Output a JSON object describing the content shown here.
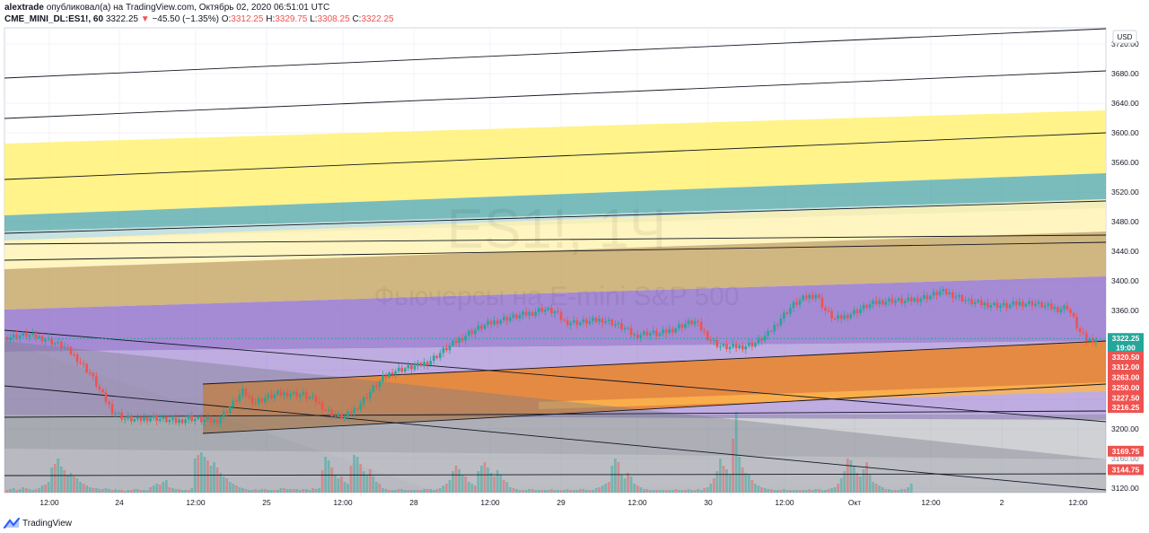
{
  "header": {
    "author": "alextrade",
    "published_text": "опубликовал(а) на TradingView.com, Октябрь 02, 2020 06:51:01 UTC",
    "symbol": "CME_MINI_DL:ES1!, 60",
    "last": "3322.25",
    "change_arrow": "▼",
    "change": "−45.50 (−1.35%)",
    "o_label": "O:",
    "o": "3312.25",
    "h_label": "H:",
    "h": "3329.75",
    "l_label": "L:",
    "l": "3308.25",
    "c_label": "C:",
    "c": "3322.25"
  },
  "footer": {
    "brand": "TradingView",
    "logo_icon": "tradingview-logo-icon"
  },
  "colors": {
    "up": "#26a69a",
    "down": "#ef5350",
    "purple_band": "#9575cd",
    "orange_band": "#f57c00",
    "yellow_band": "#fff176",
    "teal_band": "#4da6a6",
    "tan_band": "#c8a96a",
    "grey_channel": "#787b86"
  },
  "chart_data": {
    "type": "candlestick",
    "currency": "USD",
    "watermark_symbol": "ES1!, 1Ч",
    "watermark_name": "Фьючерсы на E-mini S&P 500",
    "y_ticks": [
      3120,
      3160,
      3200,
      3240,
      3280,
      3320,
      3360,
      3400,
      3440,
      3480,
      3520,
      3560,
      3600,
      3640,
      3680,
      3720
    ],
    "y_tick_labels": [
      "3120.00",
      "3160.00",
      "3200.00",
      "3240.00",
      "3280.00",
      "3320.00",
      "3360.00",
      "3400.00",
      "3440.00",
      "3480.00",
      "3520.00",
      "3560.00",
      "3600.00",
      "3640.00",
      "3680.00",
      "3720.00"
    ],
    "ylim": [
      3114,
      3742
    ],
    "x_labels": [
      "12:00",
      "24",
      "12:00",
      "25",
      "12:00",
      "28",
      "12:00",
      "29",
      "12:00",
      "30",
      "12:00",
      "Окт",
      "12:00",
      "2",
      "12:00"
    ],
    "price_tags": [
      {
        "label": "3322.25",
        "value": 3322.25,
        "color": "#26a69a"
      },
      {
        "label": "19:00",
        "value": 3310,
        "color": "#26a69a"
      },
      {
        "label": "3320.50",
        "value": 3297,
        "color": "#ef5350"
      },
      {
        "label": "3312.00",
        "value": 3284,
        "color": "#ef5350"
      },
      {
        "label": "3263.00",
        "value": 3270,
        "color": "#ef5350"
      },
      {
        "label": "3250.00",
        "value": 3256,
        "color": "#ef5350"
      },
      {
        "label": "3227.50",
        "value": 3242,
        "color": "#ef5350"
      },
      {
        "label": "3216.25",
        "value": 3229,
        "color": "#ef5350"
      },
      {
        "label": "3169.75",
        "value": 3170,
        "color": "#ef5350"
      },
      {
        "label": "3144.75",
        "value": 3145,
        "color": "#ef5350"
      }
    ],
    "faint_label": {
      "label": "3160.00",
      "value": 3160
    },
    "close_path": [
      [
        0,
        3324
      ],
      [
        6,
        3327
      ],
      [
        12,
        3322
      ],
      [
        18,
        3310
      ],
      [
        22,
        3295
      ],
      [
        26,
        3275
      ],
      [
        30,
        3245
      ],
      [
        33,
        3225
      ],
      [
        37,
        3214
      ],
      [
        41,
        3212
      ],
      [
        45,
        3216
      ],
      [
        49,
        3213
      ],
      [
        53,
        3210
      ],
      [
        57,
        3215
      ],
      [
        61,
        3212
      ],
      [
        64,
        3210
      ],
      [
        66,
        3212
      ],
      [
        69,
        3225
      ],
      [
        72,
        3240
      ],
      [
        74,
        3250
      ],
      [
        76,
        3242
      ],
      [
        78,
        3236
      ],
      [
        81,
        3242
      ],
      [
        85,
        3247
      ],
      [
        89,
        3248
      ],
      [
        93,
        3246
      ],
      [
        97,
        3238
      ],
      [
        100,
        3226
      ],
      [
        103,
        3218
      ],
      [
        106,
        3216
      ],
      [
        109,
        3226
      ],
      [
        112,
        3240
      ],
      [
        115,
        3255
      ],
      [
        118,
        3268
      ],
      [
        121,
        3278
      ],
      [
        125,
        3282
      ],
      [
        129,
        3285
      ],
      [
        133,
        3293
      ],
      [
        137,
        3306
      ],
      [
        141,
        3318
      ],
      [
        145,
        3330
      ],
      [
        150,
        3340
      ],
      [
        155,
        3348
      ],
      [
        160,
        3352
      ],
      [
        164,
        3356
      ],
      [
        168,
        3362
      ],
      [
        172,
        3358
      ],
      [
        175,
        3345
      ],
      [
        179,
        3344
      ],
      [
        183,
        3345
      ],
      [
        187,
        3348
      ],
      [
        191,
        3342
      ],
      [
        194,
        3335
      ],
      [
        197,
        3326
      ],
      [
        201,
        3330
      ],
      [
        205,
        3328
      ],
      [
        209,
        3335
      ],
      [
        213,
        3342
      ],
      [
        216,
        3345
      ],
      [
        219,
        3330
      ],
      [
        221,
        3320
      ],
      [
        224,
        3312
      ],
      [
        227,
        3310
      ],
      [
        231,
        3312
      ],
      [
        235,
        3316
      ],
      [
        239,
        3328
      ],
      [
        243,
        3350
      ],
      [
        247,
        3368
      ],
      [
        251,
        3378
      ],
      [
        254,
        3382
      ],
      [
        257,
        3360
      ],
      [
        260,
        3348
      ],
      [
        263,
        3352
      ],
      [
        266,
        3358
      ],
      [
        270,
        3366
      ],
      [
        274,
        3372
      ],
      [
        278,
        3374
      ],
      [
        282,
        3372
      ],
      [
        286,
        3376
      ],
      [
        290,
        3380
      ],
      [
        293,
        3385
      ],
      [
        296,
        3383
      ],
      [
        299,
        3378
      ],
      [
        302,
        3372
      ],
      [
        306,
        3369
      ],
      [
        310,
        3368
      ],
      [
        314,
        3366
      ],
      [
        318,
        3370
      ],
      [
        322,
        3370
      ],
      [
        326,
        3366
      ],
      [
        330,
        3362
      ],
      [
        333,
        3365
      ],
      [
        335,
        3348
      ],
      [
        337,
        3330
      ],
      [
        339,
        3320
      ],
      [
        342,
        3322
      ]
    ],
    "volume_profile": [
      3,
      4,
      5,
      3,
      4,
      6,
      5,
      4,
      3,
      4,
      5,
      8,
      9,
      12,
      28,
      32,
      38,
      29,
      25,
      20,
      22,
      18,
      16,
      12,
      10,
      8,
      6,
      5,
      5,
      4,
      4,
      5,
      4,
      3,
      4,
      3,
      3,
      2,
      3,
      3,
      4,
      4,
      3,
      3,
      3,
      6,
      8,
      10,
      9,
      12,
      14,
      6,
      5,
      4,
      4,
      3,
      3,
      3,
      5,
      38,
      42,
      45,
      40,
      36,
      30,
      34,
      28,
      22,
      18,
      16,
      12,
      10,
      8,
      6,
      5,
      4,
      3,
      3,
      4,
      3,
      4,
      4,
      3,
      3,
      3,
      3,
      5,
      5,
      4,
      4,
      4,
      4,
      3,
      4,
      4,
      3,
      5,
      4,
      5,
      25,
      40,
      36,
      28,
      20,
      16,
      18,
      12,
      10,
      30,
      42,
      40,
      32,
      24,
      20,
      26,
      18,
      12,
      10,
      5,
      4,
      3,
      3,
      3,
      4,
      4,
      3,
      3,
      3,
      3,
      3,
      3,
      4,
      4,
      4,
      3,
      4,
      5,
      8,
      10,
      14,
      24,
      30,
      26,
      20,
      18,
      12,
      10,
      8,
      24,
      30,
      34,
      28,
      22,
      18,
      25,
      20,
      14,
      12,
      6,
      5,
      4,
      3,
      3,
      3,
      4,
      4,
      3,
      3,
      3,
      3,
      3,
      4,
      3,
      3,
      3,
      3,
      4,
      3,
      3,
      3,
      4,
      4,
      3,
      3,
      3,
      5,
      6,
      8,
      10,
      12,
      30,
      38,
      34,
      20,
      16,
      22,
      18,
      10,
      8,
      6,
      4,
      4,
      3,
      3,
      3,
      3,
      3,
      3,
      3,
      3,
      4,
      3,
      3,
      3,
      4,
      3,
      3,
      4,
      3,
      5,
      6,
      10,
      16,
      24,
      38,
      30,
      26,
      20,
      60,
      90,
      40,
      28,
      22,
      20,
      14,
      10,
      8,
      6,
      5,
      4,
      4,
      3,
      3,
      3,
      4,
      3,
      3,
      3,
      3,
      3,
      3,
      3,
      4,
      3,
      4,
      4,
      3,
      3,
      4,
      5,
      6,
      10,
      16,
      24,
      38,
      36,
      30,
      22,
      18,
      26,
      34,
      20,
      12,
      10,
      8,
      6,
      4,
      4,
      3,
      3,
      3,
      4,
      4,
      6,
      10
    ]
  }
}
